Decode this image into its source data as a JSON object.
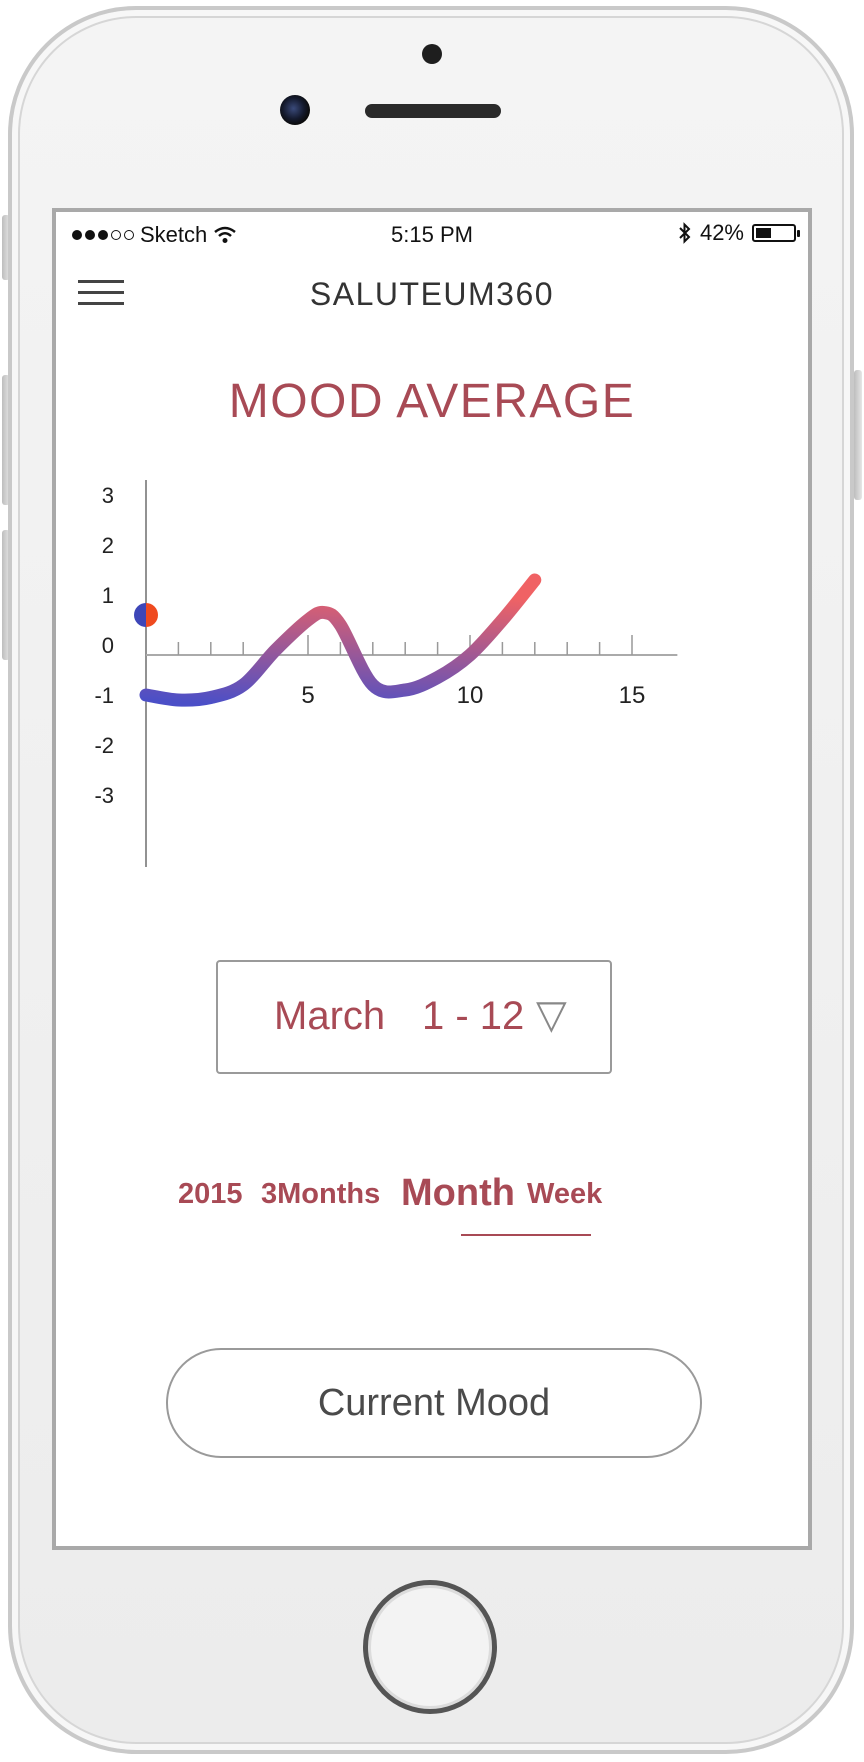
{
  "status_bar": {
    "carrier": "Sketch",
    "time": "5:15 PM",
    "battery": "42%",
    "battery_level": 0.42
  },
  "header": {
    "brand": "SALUTEUM360",
    "menu_icon": "hamburger-icon"
  },
  "title": "MOOD AVERAGE",
  "chart_data": {
    "type": "line",
    "x": [
      0,
      1,
      2,
      3,
      4,
      5,
      5.5,
      6,
      7,
      8,
      9,
      10,
      11,
      12
    ],
    "y": [
      -0.8,
      -0.9,
      -0.85,
      -0.6,
      0.1,
      0.7,
      0.85,
      0.6,
      -0.6,
      -0.7,
      -0.45,
      0.0,
      0.7,
      1.5
    ],
    "xlim": [
      0,
      16
    ],
    "ylim": [
      -3,
      3
    ],
    "x_ticks": [
      "5",
      "10",
      "15"
    ],
    "y_ticks": [
      "3",
      "2",
      "1",
      "0",
      "-1",
      "-2",
      "-3"
    ],
    "marker": {
      "x": 0,
      "y": 0.8
    },
    "gradient_colors": [
      "#4b4fc7",
      "#f06264"
    ],
    "marker_colors": [
      "#ef4a1f",
      "#3d46b8"
    ]
  },
  "date_range": {
    "month": "March",
    "days": "1 - 12",
    "caret": "▽"
  },
  "tabs": {
    "items": [
      "2015",
      "3Months",
      "Month",
      "Week"
    ],
    "selected": "Month"
  },
  "current_mood_label": "Current Mood",
  "colors": {
    "accent": "#a84a55",
    "text_dark": "#333333"
  }
}
